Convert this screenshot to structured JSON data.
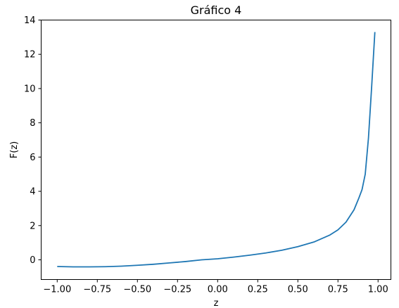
{
  "chart_data": {
    "type": "line",
    "title": "Gráfico 4",
    "xlabel": "z",
    "ylabel": "F(z)",
    "xlim": [
      -1.1,
      1.08
    ],
    "ylim": [
      -1.15,
      14.0
    ],
    "xticks": [
      -1.0,
      -0.75,
      -0.5,
      -0.25,
      0.0,
      0.25,
      0.5,
      0.75,
      1.0
    ],
    "xtick_labels": [
      "−1.00",
      "−0.75",
      "−0.50",
      "−0.25",
      "0.00",
      "0.25",
      "0.50",
      "0.75",
      "1.00"
    ],
    "yticks": [
      0,
      2,
      4,
      6,
      8,
      10,
      12,
      14
    ],
    "ytick_labels": [
      "0",
      "2",
      "4",
      "6",
      "8",
      "10",
      "12",
      "14"
    ],
    "grid": false,
    "series": [
      {
        "color": "#1f77b4",
        "x": [
          -1.0,
          -0.9,
          -0.8,
          -0.7,
          -0.6,
          -0.5,
          -0.4,
          -0.3,
          -0.2,
          -0.1,
          0.0,
          0.1,
          0.2,
          0.3,
          0.4,
          0.5,
          0.6,
          0.7,
          0.75,
          0.8,
          0.85,
          0.88,
          0.9,
          0.92,
          0.94,
          0.96,
          0.98
        ],
        "y": [
          -0.39,
          -0.41,
          -0.41,
          -0.4,
          -0.37,
          -0.32,
          -0.26,
          -0.18,
          -0.1,
          0.0,
          0.06,
          0.16,
          0.27,
          0.4,
          0.56,
          0.77,
          1.04,
          1.45,
          1.75,
          2.2,
          2.92,
          3.6,
          4.1,
          5.0,
          7.1,
          10.1,
          13.3
        ]
      }
    ]
  }
}
